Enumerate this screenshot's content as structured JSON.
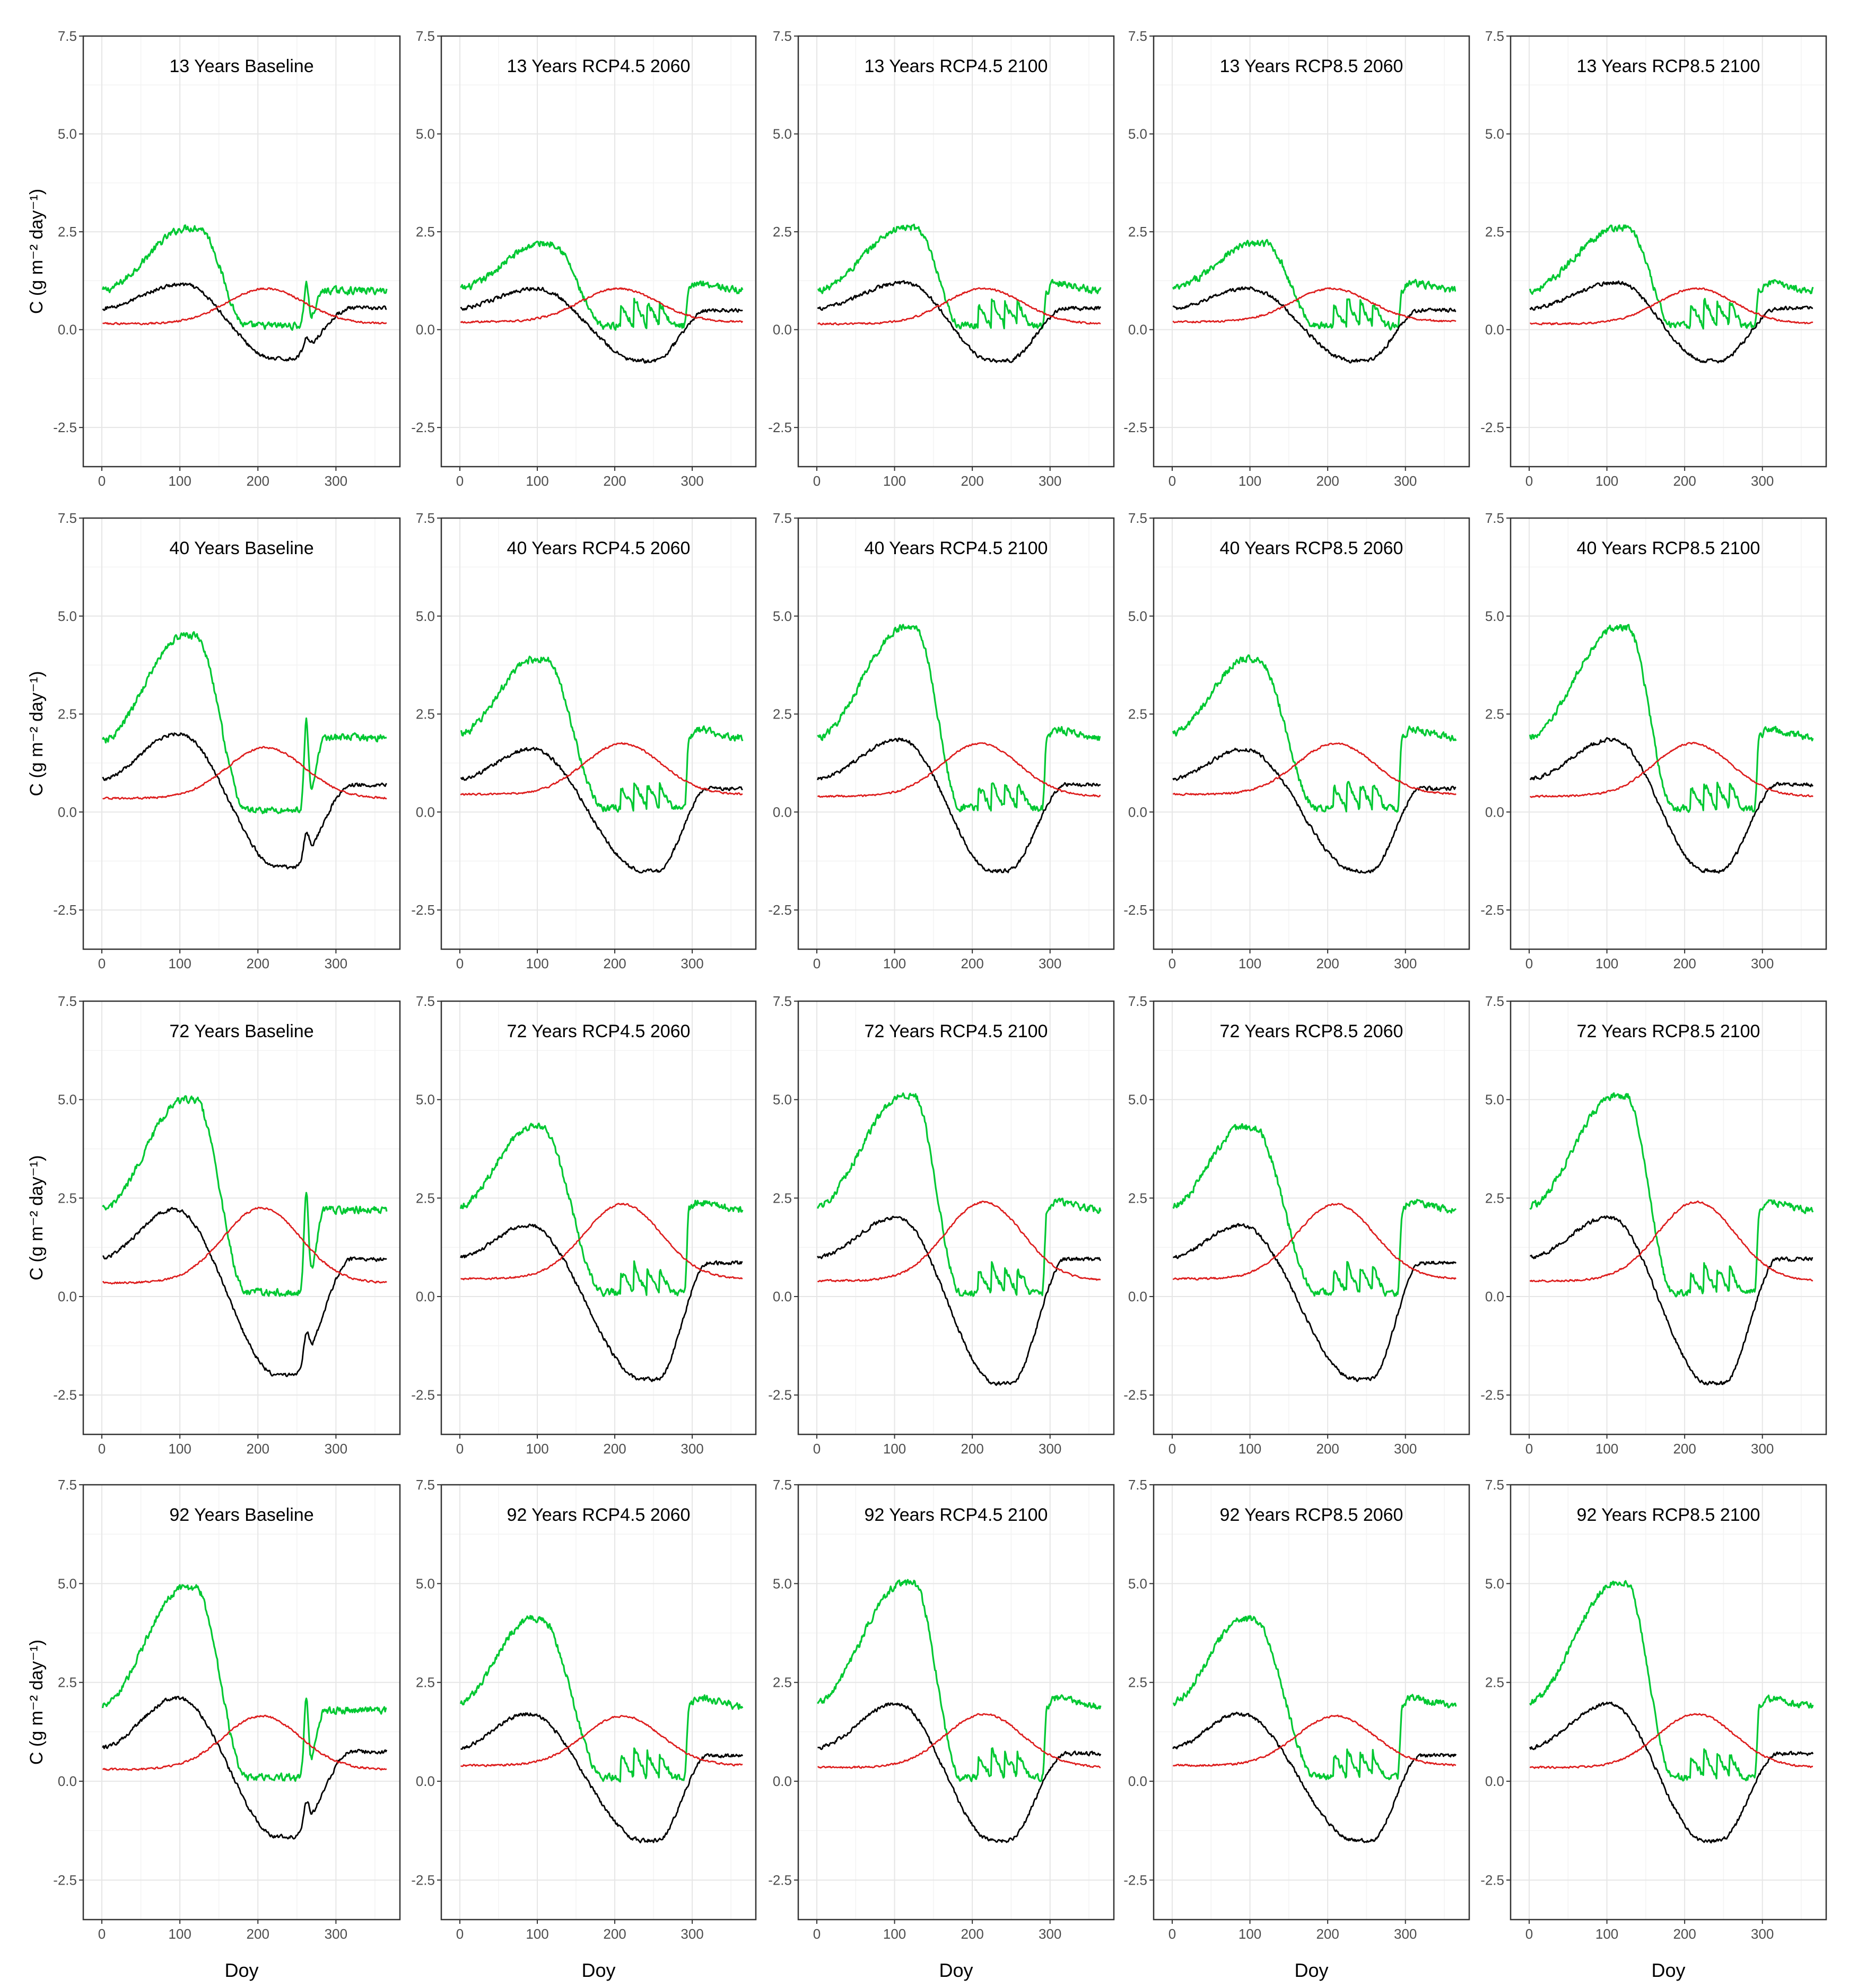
{
  "chart_data": {
    "type": "line",
    "layout": "4 rows x 5 columns of line panels",
    "xlabel": "Doy",
    "ylabel": "C (g m⁻² day⁻¹)",
    "x_range": [
      1,
      365
    ],
    "ylim": [
      -3.5,
      7.5
    ],
    "x_ticks": [
      "0",
      "100",
      "200",
      "300"
    ],
    "y_ticks": [
      "-2.5",
      "0.0",
      "2.5",
      "5.0",
      "7.5"
    ],
    "series_colors": {
      "green": "#00c832",
      "black": "#000000",
      "red": "#dd1c1c"
    },
    "panels": [
      {
        "title": "13 Years Baseline",
        "green": {
          "base": 1.0,
          "peak": 2.6,
          "peak_day": 110,
          "sharp": 0,
          "low": 0.1,
          "spike": 1.2,
          "end": 1.0
        },
        "black": {
          "start": 0.55,
          "peak": 1.15,
          "peak_day": 100,
          "min": -0.75,
          "min_day": 220,
          "end": 0.55,
          "spike": 0.3
        },
        "red": {
          "base": 0.15,
          "peak": 1.05,
          "peak_day": 210
        }
      },
      {
        "title": "13 Years RCP4.5 2060",
        "green": {
          "base": 1.05,
          "peak": 2.2,
          "peak_day": 105,
          "sharp": 1,
          "low": 0.1,
          "spike": 1.0,
          "end": 1.0
        },
        "black": {
          "start": 0.55,
          "peak": 1.05,
          "peak_day": 95,
          "min": -0.8,
          "min_day": 230,
          "end": 0.5,
          "spike": 0
        },
        "red": {
          "base": 0.2,
          "peak": 1.05,
          "peak_day": 205
        }
      },
      {
        "title": "13 Years RCP4.5 2100",
        "green": {
          "base": 1.0,
          "peak": 2.6,
          "peak_day": 112,
          "sharp": 1,
          "low": 0.1,
          "spike": 1.0,
          "end": 1.0
        },
        "black": {
          "start": 0.55,
          "peak": 1.2,
          "peak_day": 110,
          "min": -0.8,
          "min_day": 225,
          "end": 0.55,
          "spike": 0
        },
        "red": {
          "base": 0.15,
          "peak": 1.05,
          "peak_day": 215
        }
      },
      {
        "title": "13 Years RCP8.5 2060",
        "green": {
          "base": 1.05,
          "peak": 2.2,
          "peak_day": 105,
          "sharp": 1,
          "low": 0.1,
          "spike": 1.0,
          "end": 1.0
        },
        "black": {
          "start": 0.55,
          "peak": 1.05,
          "peak_day": 95,
          "min": -0.8,
          "min_day": 230,
          "end": 0.5,
          "spike": 0
        },
        "red": {
          "base": 0.2,
          "peak": 1.05,
          "peak_day": 205
        }
      },
      {
        "title": "13 Years RCP8.5 2100",
        "green": {
          "base": 1.0,
          "peak": 2.6,
          "peak_day": 112,
          "sharp": 1,
          "low": 0.1,
          "spike": 1.0,
          "end": 1.0
        },
        "black": {
          "start": 0.55,
          "peak": 1.2,
          "peak_day": 110,
          "min": -0.8,
          "min_day": 225,
          "end": 0.55,
          "spike": 0
        },
        "red": {
          "base": 0.15,
          "peak": 1.05,
          "peak_day": 215
        }
      },
      {
        "title": "40 Years Baseline",
        "green": {
          "base": 1.8,
          "peak": 4.5,
          "peak_day": 105,
          "sharp": 0,
          "low": 0.05,
          "spike": 2.3,
          "end": 1.9
        },
        "black": {
          "start": 0.85,
          "peak": 2.0,
          "peak_day": 95,
          "min": -1.4,
          "min_day": 225,
          "end": 0.7,
          "spike": 0.6
        },
        "red": {
          "base": 0.35,
          "peak": 1.65,
          "peak_day": 210
        }
      },
      {
        "title": "40 Years RCP4.5 2060",
        "green": {
          "base": 2.0,
          "peak": 3.9,
          "peak_day": 95,
          "sharp": 1,
          "low": 0.1,
          "spike": 2.0,
          "end": 1.9
        },
        "black": {
          "start": 0.85,
          "peak": 1.6,
          "peak_day": 90,
          "min": -1.5,
          "min_day": 235,
          "end": 0.6,
          "spike": 0
        },
        "red": {
          "base": 0.45,
          "peak": 1.75,
          "peak_day": 210
        }
      },
      {
        "title": "40 Years RCP4.5 2100",
        "green": {
          "base": 1.9,
          "peak": 4.7,
          "peak_day": 112,
          "sharp": 1,
          "low": 0.1,
          "spike": 2.2,
          "end": 1.9
        },
        "black": {
          "start": 0.85,
          "peak": 1.85,
          "peak_day": 105,
          "min": -1.5,
          "min_day": 225,
          "end": 0.7,
          "spike": 0
        },
        "red": {
          "base": 0.4,
          "peak": 1.75,
          "peak_day": 210
        }
      },
      {
        "title": "40 Years RCP8.5 2060",
        "green": {
          "base": 2.0,
          "peak": 3.9,
          "peak_day": 95,
          "sharp": 1,
          "low": 0.1,
          "spike": 2.0,
          "end": 1.9
        },
        "black": {
          "start": 0.85,
          "peak": 1.6,
          "peak_day": 90,
          "min": -1.5,
          "min_day": 235,
          "end": 0.6,
          "spike": 0
        },
        "red": {
          "base": 0.45,
          "peak": 1.75,
          "peak_day": 210
        }
      },
      {
        "title": "40 Years RCP8.5 2100",
        "green": {
          "base": 1.9,
          "peak": 4.7,
          "peak_day": 112,
          "sharp": 1,
          "low": 0.1,
          "spike": 2.2,
          "end": 1.9
        },
        "black": {
          "start": 0.85,
          "peak": 1.85,
          "peak_day": 105,
          "min": -1.5,
          "min_day": 225,
          "end": 0.7,
          "spike": 0
        },
        "red": {
          "base": 0.4,
          "peak": 1.75,
          "peak_day": 210
        }
      },
      {
        "title": "72 Years Baseline",
        "green": {
          "base": 2.2,
          "peak": 5.0,
          "peak_day": 105,
          "sharp": 0,
          "low": 0.1,
          "spike": 2.7,
          "end": 2.2
        },
        "black": {
          "start": 1.0,
          "peak": 2.2,
          "peak_day": 90,
          "min": -2.0,
          "min_day": 225,
          "end": 0.95,
          "spike": 0.7
        },
        "red": {
          "base": 0.35,
          "peak": 2.25,
          "peak_day": 205
        }
      },
      {
        "title": "72 Years RCP4.5 2060",
        "green": {
          "base": 2.3,
          "peak": 4.3,
          "peak_day": 90,
          "sharp": 1,
          "low": 0.1,
          "spike": 2.3,
          "end": 2.2
        },
        "black": {
          "start": 1.0,
          "peak": 1.8,
          "peak_day": 85,
          "min": -2.1,
          "min_day": 235,
          "end": 0.85,
          "spike": 0
        },
        "red": {
          "base": 0.45,
          "peak": 2.35,
          "peak_day": 210
        }
      },
      {
        "title": "72 Years RCP4.5 2100",
        "green": {
          "base": 2.3,
          "peak": 5.1,
          "peak_day": 110,
          "sharp": 1,
          "low": 0.1,
          "spike": 2.6,
          "end": 2.2
        },
        "black": {
          "start": 1.0,
          "peak": 2.0,
          "peak_day": 100,
          "min": -2.2,
          "min_day": 230,
          "end": 0.95,
          "spike": 0
        },
        "red": {
          "base": 0.4,
          "peak": 2.4,
          "peak_day": 215
        }
      },
      {
        "title": "72 Years RCP8.5 2060",
        "green": {
          "base": 2.3,
          "peak": 4.3,
          "peak_day": 90,
          "sharp": 1,
          "low": 0.1,
          "spike": 2.3,
          "end": 2.2
        },
        "black": {
          "start": 1.0,
          "peak": 1.8,
          "peak_day": 85,
          "min": -2.1,
          "min_day": 235,
          "end": 0.85,
          "spike": 0
        },
        "red": {
          "base": 0.45,
          "peak": 2.35,
          "peak_day": 210
        }
      },
      {
        "title": "72 Years RCP8.5 2100",
        "green": {
          "base": 2.3,
          "peak": 5.1,
          "peak_day": 110,
          "sharp": 1,
          "low": 0.1,
          "spike": 2.6,
          "end": 2.2
        },
        "black": {
          "start": 1.0,
          "peak": 2.0,
          "peak_day": 100,
          "min": -2.2,
          "min_day": 230,
          "end": 0.95,
          "spike": 0
        },
        "red": {
          "base": 0.4,
          "peak": 2.4,
          "peak_day": 215
        }
      },
      {
        "title": "92 Years Baseline",
        "green": {
          "base": 1.9,
          "peak": 4.9,
          "peak_day": 105,
          "sharp": 0,
          "low": 0.1,
          "spike": 2.1,
          "end": 1.8
        },
        "black": {
          "start": 0.85,
          "peak": 2.1,
          "peak_day": 95,
          "min": -1.4,
          "min_day": 225,
          "end": 0.75,
          "spike": 0.6
        },
        "red": {
          "base": 0.3,
          "peak": 1.65,
          "peak_day": 205
        }
      },
      {
        "title": "92 Years RCP4.5 2060",
        "green": {
          "base": 2.0,
          "peak": 4.1,
          "peak_day": 90,
          "sharp": 1,
          "low": 0.1,
          "spike": 2.0,
          "end": 1.9
        },
        "black": {
          "start": 0.85,
          "peak": 1.7,
          "peak_day": 85,
          "min": -1.5,
          "min_day": 235,
          "end": 0.65,
          "spike": 0
        },
        "red": {
          "base": 0.4,
          "peak": 1.65,
          "peak_day": 210
        }
      },
      {
        "title": "92 Years RCP4.5 2100",
        "green": {
          "base": 2.0,
          "peak": 5.0,
          "peak_day": 110,
          "sharp": 1,
          "low": 0.1,
          "spike": 2.0,
          "end": 1.9
        },
        "black": {
          "start": 0.85,
          "peak": 1.95,
          "peak_day": 100,
          "min": -1.5,
          "min_day": 225,
          "end": 0.7,
          "spike": 0
        },
        "red": {
          "base": 0.35,
          "peak": 1.7,
          "peak_day": 215
        }
      },
      {
        "title": "92 Years RCP8.5 2060",
        "green": {
          "base": 2.0,
          "peak": 4.1,
          "peak_day": 90,
          "sharp": 1,
          "low": 0.1,
          "spike": 2.0,
          "end": 1.9
        },
        "black": {
          "start": 0.85,
          "peak": 1.7,
          "peak_day": 85,
          "min": -1.5,
          "min_day": 235,
          "end": 0.65,
          "spike": 0
        },
        "red": {
          "base": 0.4,
          "peak": 1.65,
          "peak_day": 210
        }
      },
      {
        "title": "92 Years RCP8.5 2100",
        "green": {
          "base": 2.0,
          "peak": 5.0,
          "peak_day": 110,
          "sharp": 1,
          "low": 0.1,
          "spike": 2.0,
          "end": 1.9
        },
        "black": {
          "start": 0.85,
          "peak": 1.95,
          "peak_day": 100,
          "min": -1.5,
          "min_day": 225,
          "end": 0.7,
          "spike": 0
        },
        "red": {
          "base": 0.35,
          "peak": 1.7,
          "peak_day": 215
        }
      }
    ]
  }
}
